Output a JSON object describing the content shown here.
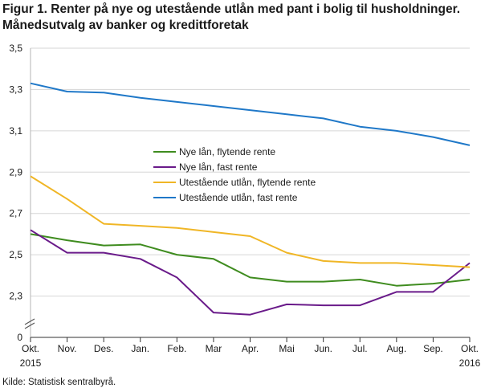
{
  "title_line1": "Figur 1. Renter på nye og utestående utlån med pant i bolig til husholdninger.",
  "title_line2": "Månedsutvalg av banker og kredittforetak",
  "source": "Kilde: Statistisk sentralbyrå.",
  "chart_data": {
    "type": "line",
    "categories": [
      "Oct 2015",
      "Nov 2015",
      "Dec 2015",
      "Jan 2016",
      "Feb 2016",
      "Mar 2016",
      "Apr 2016",
      "May 2016",
      "Jun 2016",
      "Jul 2016",
      "Aug 2016",
      "Sep 2016",
      "Oct 2016"
    ],
    "x_tick_labels": [
      "Okt.",
      "Nov.",
      "Des.",
      "Jan.",
      "Feb.",
      "Mar",
      "Apr.",
      "Mai",
      "Jun.",
      "Jul.",
      "Aug.",
      "Sep.",
      "Okt."
    ],
    "x_year_labels": [
      {
        "index": 0,
        "label": "2015"
      },
      {
        "index": 12,
        "label": "2016"
      }
    ],
    "y_ticks": [
      "0",
      "2,3",
      "2,5",
      "2,7",
      "2,9",
      "3,1",
      "3,3",
      "3,5"
    ],
    "ylim": [
      2.1,
      3.5
    ],
    "axis_break": true,
    "grid": "horizontal",
    "legend_position": "center",
    "series": [
      {
        "name": "Nye lån, flytende rente",
        "color": "#3f8c1f",
        "values": [
          2.6,
          2.57,
          2.545,
          2.55,
          2.5,
          2.48,
          2.39,
          2.37,
          2.37,
          2.38,
          2.35,
          2.36,
          2.38
        ]
      },
      {
        "name": "Nye lån, fast rente",
        "color": "#6a1b8a",
        "values": [
          2.62,
          2.51,
          2.51,
          2.48,
          2.39,
          2.22,
          2.21,
          2.26,
          2.255,
          2.255,
          2.32,
          2.32,
          2.46
        ]
      },
      {
        "name": "Utestående utlån, flytende rente",
        "color": "#f0b626",
        "values": [
          2.88,
          2.77,
          2.65,
          2.64,
          2.63,
          2.61,
          2.59,
          2.51,
          2.47,
          2.46,
          2.46,
          2.45,
          2.44
        ]
      },
      {
        "name": "Utestående utlån, fast rente",
        "color": "#1f78c8",
        "values": [
          3.33,
          3.29,
          3.285,
          3.26,
          3.24,
          3.22,
          3.2,
          3.18,
          3.16,
          3.12,
          3.1,
          3.07,
          3.03
        ]
      }
    ]
  }
}
